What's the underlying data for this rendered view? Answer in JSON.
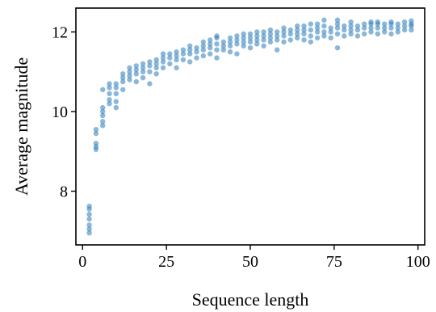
{
  "chart_data": {
    "type": "scatter",
    "title": "",
    "xlabel": "Sequence length",
    "ylabel": "Average magnitude",
    "xlim": [
      -2,
      102
    ],
    "ylim": [
      6.65,
      12.6
    ],
    "xticks": [
      0,
      25,
      50,
      75,
      100
    ],
    "yticks": [
      8,
      10,
      12
    ],
    "grid": false,
    "legend": "none",
    "marker_color": "#2b7bba",
    "marker_opacity": 0.55,
    "series": [
      {
        "points": [
          [
            2,
            6.95
          ],
          [
            2,
            7.05
          ],
          [
            2,
            7.15
          ],
          [
            2,
            7.3
          ],
          [
            2,
            7.42
          ],
          [
            2,
            7.55
          ],
          [
            2,
            7.62
          ],
          [
            4,
            9.05
          ],
          [
            4,
            9.12
          ],
          [
            4,
            9.2
          ],
          [
            4,
            9.45
          ],
          [
            4,
            9.55
          ],
          [
            6,
            9.65
          ],
          [
            6,
            9.75
          ],
          [
            6,
            9.9
          ],
          [
            6,
            10.0
          ],
          [
            6,
            10.1
          ],
          [
            6,
            10.55
          ],
          [
            8,
            10.2
          ],
          [
            8,
            10.3
          ],
          [
            8,
            10.45
          ],
          [
            8,
            10.6
          ],
          [
            8,
            10.7
          ],
          [
            10,
            10.1
          ],
          [
            10,
            10.25
          ],
          [
            10,
            10.45
          ],
          [
            10,
            10.6
          ],
          [
            10,
            10.7
          ],
          [
            12,
            10.55
          ],
          [
            12,
            10.75
          ],
          [
            12,
            10.85
          ],
          [
            12,
            10.95
          ],
          [
            14,
            10.8
          ],
          [
            14,
            10.9
          ],
          [
            14,
            11.0
          ],
          [
            14,
            11.1
          ],
          [
            16,
            10.75
          ],
          [
            16,
            10.95
          ],
          [
            16,
            11.05
          ],
          [
            16,
            11.15
          ],
          [
            18,
            10.85
          ],
          [
            18,
            11.0
          ],
          [
            18,
            11.1
          ],
          [
            18,
            11.2
          ],
          [
            20,
            10.7
          ],
          [
            20,
            11.0
          ],
          [
            20,
            11.15
          ],
          [
            20,
            11.25
          ],
          [
            22,
            10.95
          ],
          [
            22,
            11.1
          ],
          [
            22,
            11.2
          ],
          [
            22,
            11.3
          ],
          [
            24,
            11.1
          ],
          [
            24,
            11.25
          ],
          [
            24,
            11.35
          ],
          [
            24,
            11.45
          ],
          [
            26,
            11.2
          ],
          [
            26,
            11.35
          ],
          [
            26,
            11.45
          ],
          [
            28,
            11.1
          ],
          [
            28,
            11.3
          ],
          [
            28,
            11.4
          ],
          [
            28,
            11.5
          ],
          [
            30,
            11.3
          ],
          [
            30,
            11.45
          ],
          [
            30,
            11.55
          ],
          [
            32,
            11.25
          ],
          [
            32,
            11.45
          ],
          [
            32,
            11.55
          ],
          [
            32,
            11.65
          ],
          [
            34,
            11.35
          ],
          [
            34,
            11.5
          ],
          [
            34,
            11.6
          ],
          [
            36,
            11.4
          ],
          [
            36,
            11.55
          ],
          [
            36,
            11.65
          ],
          [
            36,
            11.75
          ],
          [
            38,
            11.45
          ],
          [
            38,
            11.6
          ],
          [
            38,
            11.7
          ],
          [
            38,
            11.8
          ],
          [
            40,
            11.35
          ],
          [
            40,
            11.55
          ],
          [
            40,
            11.7
          ],
          [
            40,
            11.85
          ],
          [
            40,
            11.9
          ],
          [
            42,
            11.55
          ],
          [
            42,
            11.65
          ],
          [
            42,
            11.75
          ],
          [
            44,
            11.5
          ],
          [
            44,
            11.65
          ],
          [
            44,
            11.75
          ],
          [
            44,
            11.85
          ],
          [
            46,
            11.45
          ],
          [
            46,
            11.7
          ],
          [
            46,
            11.8
          ],
          [
            46,
            11.9
          ],
          [
            48,
            11.65
          ],
          [
            48,
            11.75
          ],
          [
            48,
            11.85
          ],
          [
            48,
            11.95
          ],
          [
            50,
            11.6
          ],
          [
            50,
            11.75
          ],
          [
            50,
            11.85
          ],
          [
            50,
            11.95
          ],
          [
            52,
            11.7
          ],
          [
            52,
            11.8
          ],
          [
            52,
            11.9
          ],
          [
            52,
            12.0
          ],
          [
            54,
            11.65
          ],
          [
            54,
            11.8
          ],
          [
            54,
            11.9
          ],
          [
            54,
            12.0
          ],
          [
            56,
            11.75
          ],
          [
            56,
            11.85
          ],
          [
            56,
            11.95
          ],
          [
            56,
            12.05
          ],
          [
            58,
            11.55
          ],
          [
            58,
            11.8
          ],
          [
            58,
            11.9
          ],
          [
            58,
            12.0
          ],
          [
            60,
            11.75
          ],
          [
            60,
            11.9
          ],
          [
            60,
            12.0
          ],
          [
            60,
            12.1
          ],
          [
            62,
            11.8
          ],
          [
            62,
            11.95
          ],
          [
            62,
            12.05
          ],
          [
            64,
            11.85
          ],
          [
            64,
            11.95
          ],
          [
            64,
            12.05
          ],
          [
            64,
            12.15
          ],
          [
            66,
            11.8
          ],
          [
            66,
            11.95
          ],
          [
            66,
            12.05
          ],
          [
            66,
            12.15
          ],
          [
            68,
            11.75
          ],
          [
            68,
            11.9
          ],
          [
            68,
            12.05
          ],
          [
            68,
            12.2
          ],
          [
            70,
            11.85
          ],
          [
            70,
            12.0
          ],
          [
            70,
            12.1
          ],
          [
            70,
            12.2
          ],
          [
            72,
            11.9
          ],
          [
            72,
            12.0
          ],
          [
            72,
            12.15
          ],
          [
            72,
            12.3
          ],
          [
            74,
            11.85
          ],
          [
            74,
            12.0
          ],
          [
            74,
            12.1
          ],
          [
            76,
            11.6
          ],
          [
            76,
            11.95
          ],
          [
            76,
            12.1
          ],
          [
            76,
            12.2
          ],
          [
            76,
            12.3
          ],
          [
            78,
            11.9
          ],
          [
            78,
            12.05
          ],
          [
            78,
            12.15
          ],
          [
            80,
            11.95
          ],
          [
            80,
            12.05
          ],
          [
            80,
            12.15
          ],
          [
            80,
            12.25
          ],
          [
            82,
            11.9
          ],
          [
            82,
            12.05
          ],
          [
            82,
            12.15
          ],
          [
            84,
            11.95
          ],
          [
            84,
            12.1
          ],
          [
            84,
            12.2
          ],
          [
            86,
            12.0
          ],
          [
            86,
            12.1
          ],
          [
            86,
            12.2
          ],
          [
            86,
            12.25
          ],
          [
            88,
            11.95
          ],
          [
            88,
            12.1
          ],
          [
            88,
            12.2
          ],
          [
            88,
            12.25
          ],
          [
            90,
            12.0
          ],
          [
            90,
            12.1
          ],
          [
            90,
            12.2
          ],
          [
            92,
            11.95
          ],
          [
            92,
            12.1
          ],
          [
            92,
            12.2
          ],
          [
            92,
            12.25
          ],
          [
            94,
            12.0
          ],
          [
            94,
            12.1
          ],
          [
            94,
            12.2
          ],
          [
            96,
            12.05
          ],
          [
            96,
            12.15
          ],
          [
            96,
            12.25
          ],
          [
            98,
            12.05
          ],
          [
            98,
            12.15
          ],
          [
            98,
            12.2
          ],
          [
            98,
            12.28
          ]
        ]
      }
    ]
  }
}
